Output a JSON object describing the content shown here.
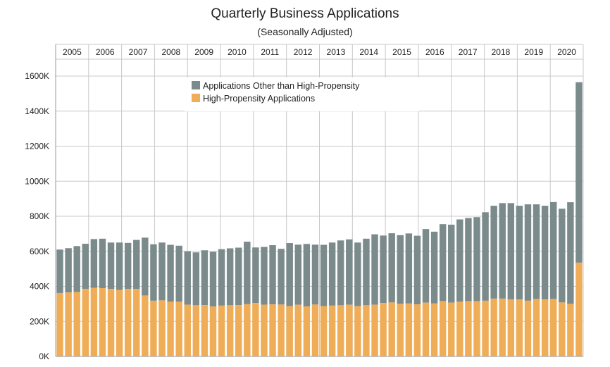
{
  "chart_data": {
    "type": "bar",
    "stacked": true,
    "title": "Quarterly Business Applications",
    "subtitle": "(Seasonally Adjusted)",
    "years": [
      "2005",
      "2006",
      "2007",
      "2008",
      "2009",
      "2010",
      "2011",
      "2012",
      "2013",
      "2014",
      "2015",
      "2016",
      "2017",
      "2018",
      "2019",
      "2020"
    ],
    "y_ticks": [
      "0K",
      "200K",
      "400K",
      "600K",
      "800K",
      "1000K",
      "1200K",
      "1400K",
      "1600K"
    ],
    "ylim": [
      0,
      1600000
    ],
    "grid": true,
    "legend_position": "top-center",
    "colors": {
      "other": "#7b8b8c",
      "high": "#f0ad58",
      "grid": "#c8c8c8"
    },
    "series": [
      {
        "name": "High-Propensity Applications",
        "values": [
          362000,
          365000,
          368000,
          385000,
          392000,
          390000,
          385000,
          380000,
          385000,
          385000,
          348000,
          318000,
          320000,
          312000,
          312000,
          295000,
          292000,
          293000,
          285000,
          290000,
          292000,
          293000,
          298000,
          305000,
          295000,
          297000,
          296000,
          287000,
          295000,
          285000,
          296000,
          287000,
          290000,
          292000,
          295000,
          287000,
          292000,
          295000,
          305000,
          308000,
          300000,
          302000,
          297000,
          307000,
          302000,
          315000,
          307000,
          312000,
          315000,
          315000,
          318000,
          330000,
          330000,
          325000,
          325000,
          318000,
          328000,
          325000,
          328000,
          308000,
          300000,
          535000
        ]
      },
      {
        "name": "Applications Other than High-Propensity",
        "values": [
          248000,
          253000,
          262000,
          258000,
          278000,
          282000,
          265000,
          270000,
          263000,
          280000,
          330000,
          322000,
          330000,
          325000,
          320000,
          305000,
          302000,
          313000,
          312000,
          322000,
          325000,
          328000,
          357000,
          317000,
          330000,
          338000,
          318000,
          360000,
          343000,
          357000,
          342000,
          350000,
          360000,
          370000,
          373000,
          363000,
          380000,
          402000,
          385000,
          395000,
          392000,
          400000,
          392000,
          420000,
          410000,
          440000,
          445000,
          470000,
          475000,
          480000,
          505000,
          530000,
          545000,
          550000,
          535000,
          550000,
          540000,
          535000,
          553000,
          535000,
          580000,
          1030000
        ]
      }
    ]
  }
}
